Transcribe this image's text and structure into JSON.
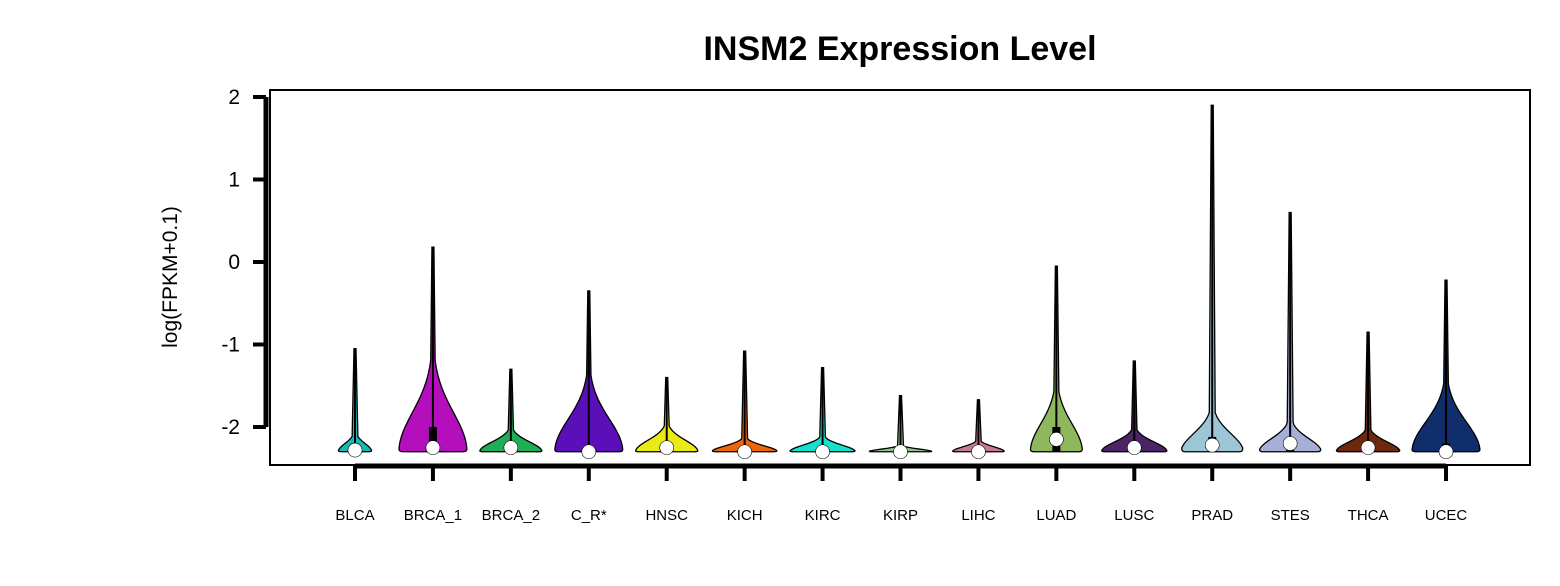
{
  "chart_data": {
    "type": "violin",
    "title": "INSM2 Expression Level",
    "xlabel": "",
    "ylabel": "log(FPKM+0.1)",
    "ylim": [
      -2.45,
      2.1
    ],
    "yticks": [
      -2,
      -1,
      0,
      1,
      2
    ],
    "grid": false,
    "legend": "none",
    "categories": [
      "BLCA",
      "BRCA_1",
      "BRCA_2",
      "C_R*",
      "HNSC",
      "KICH",
      "KIRC",
      "KIRP",
      "LIHC",
      "LUAD",
      "LUSC",
      "PRAD",
      "STES",
      "THCA",
      "UCEC"
    ],
    "colors": [
      "#19b8b4",
      "#b30fbd",
      "#1fad55",
      "#5a0fb8",
      "#eaea19",
      "#f0630f",
      "#19e0cc",
      "#8fc48f",
      "#c77a92",
      "#8fb85e",
      "#4a2466",
      "#9cc6d6",
      "#a6b0d6",
      "#6b2a0f",
      "#0f2e6b"
    ],
    "series": [
      {
        "category": "BLCA",
        "min": -2.3,
        "max": -1.05,
        "median": -2.28,
        "q1": -2.3,
        "q3": -2.2,
        "peak_height": 0.25,
        "peak_width": 0.42
      },
      {
        "category": "BRCA_1",
        "min": -2.3,
        "max": 0.18,
        "median": -2.25,
        "q1": -2.3,
        "q3": -2.0,
        "peak_height": 1.2,
        "peak_width": 0.85
      },
      {
        "category": "BRCA_2",
        "min": -2.3,
        "max": -1.3,
        "median": -2.25,
        "q1": -2.3,
        "q3": -2.18,
        "peak_height": 0.3,
        "peak_width": 0.78
      },
      {
        "category": "C_R*",
        "min": -2.3,
        "max": -0.35,
        "median": -2.3,
        "q1": -2.3,
        "q3": -2.25,
        "peak_height": 1.0,
        "peak_width": 0.85
      },
      {
        "category": "HNSC",
        "min": -2.3,
        "max": -1.4,
        "median": -2.25,
        "q1": -2.3,
        "q3": -2.2,
        "peak_height": 0.35,
        "peak_width": 0.78
      },
      {
        "category": "KICH",
        "min": -2.3,
        "max": -1.08,
        "median": -2.3,
        "q1": -2.3,
        "q3": -2.28,
        "peak_height": 0.18,
        "peak_width": 0.82
      },
      {
        "category": "KIRC",
        "min": -2.3,
        "max": -1.28,
        "median": -2.3,
        "q1": -2.3,
        "q3": -2.25,
        "peak_height": 0.2,
        "peak_width": 0.82
      },
      {
        "category": "KIRP",
        "min": -2.3,
        "max": -1.62,
        "median": -2.3,
        "q1": -2.3,
        "q3": -2.29,
        "peak_height": 0.08,
        "peak_width": 0.8
      },
      {
        "category": "LIHC",
        "min": -2.3,
        "max": -1.67,
        "median": -2.3,
        "q1": -2.3,
        "q3": -2.28,
        "peak_height": 0.15,
        "peak_width": 0.65
      },
      {
        "category": "LUAD",
        "min": -2.3,
        "max": -0.05,
        "median": -2.15,
        "q1": -2.3,
        "q3": -2.0,
        "peak_height": 0.85,
        "peak_width": 0.65
      },
      {
        "category": "LUSC",
        "min": -2.3,
        "max": -1.2,
        "median": -2.25,
        "q1": -2.3,
        "q3": -2.2,
        "peak_height": 0.3,
        "peak_width": 0.82
      },
      {
        "category": "PRAD",
        "min": -2.3,
        "max": 1.9,
        "median": -2.22,
        "q1": -2.3,
        "q3": -2.12,
        "peak_height": 0.55,
        "peak_width": 0.78
      },
      {
        "category": "STES",
        "min": -2.3,
        "max": 0.6,
        "median": -2.2,
        "q1": -2.3,
        "q3": -2.15,
        "peak_height": 0.4,
        "peak_width": 0.78
      },
      {
        "category": "THCA",
        "min": -2.3,
        "max": -0.85,
        "median": -2.25,
        "q1": -2.3,
        "q3": -2.18,
        "peak_height": 0.3,
        "peak_width": 0.8
      },
      {
        "category": "UCEC",
        "min": -2.3,
        "max": -0.22,
        "median": -2.3,
        "q1": -2.3,
        "q3": -2.2,
        "peak_height": 0.9,
        "peak_width": 0.85
      }
    ]
  }
}
